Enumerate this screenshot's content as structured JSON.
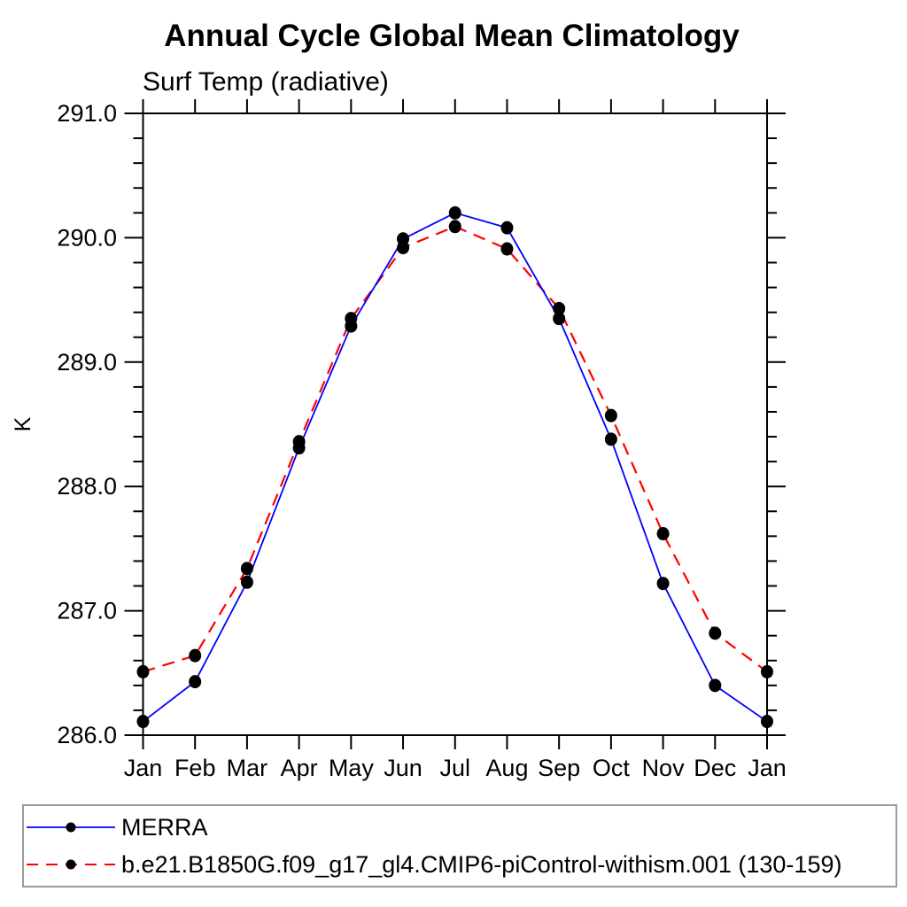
{
  "chart_data": {
    "type": "line",
    "title": "Annual Cycle Global Mean Climatology",
    "subtitle": "Surf Temp (radiative)",
    "xlabel": "",
    "ylabel": "K",
    "categories": [
      "Jan",
      "Feb",
      "Mar",
      "Apr",
      "May",
      "Jun",
      "Jul",
      "Aug",
      "Sep",
      "Oct",
      "Nov",
      "Dec",
      "Jan"
    ],
    "series": [
      {
        "name": "MERRA",
        "color": "#0000ff",
        "line_style": "solid",
        "marker": "filled-circle",
        "marker_color": "#000000",
        "values": [
          286.11,
          286.43,
          287.23,
          288.31,
          289.29,
          289.99,
          290.2,
          290.08,
          289.35,
          288.38,
          287.22,
          286.4,
          286.11
        ]
      },
      {
        "name": "b.e21.B1850G.f09_g17_gl4.CMIP6-piControl-withism.001 (130-159)",
        "color": "#ff0000",
        "line_style": "dashed",
        "marker": "filled-circle",
        "marker_color": "#000000",
        "values": [
          286.51,
          286.64,
          287.34,
          288.36,
          289.35,
          289.92,
          290.09,
          289.91,
          289.43,
          288.57,
          287.62,
          286.82,
          286.51
        ]
      }
    ],
    "ylim": [
      286.0,
      291.0
    ],
    "ytick_labels": [
      "286.0",
      "287.0",
      "288.0",
      "289.0",
      "290.0",
      "291.0"
    ],
    "ytick_minor_step": 0.2,
    "grid": false,
    "legend_position": "bottom"
  }
}
